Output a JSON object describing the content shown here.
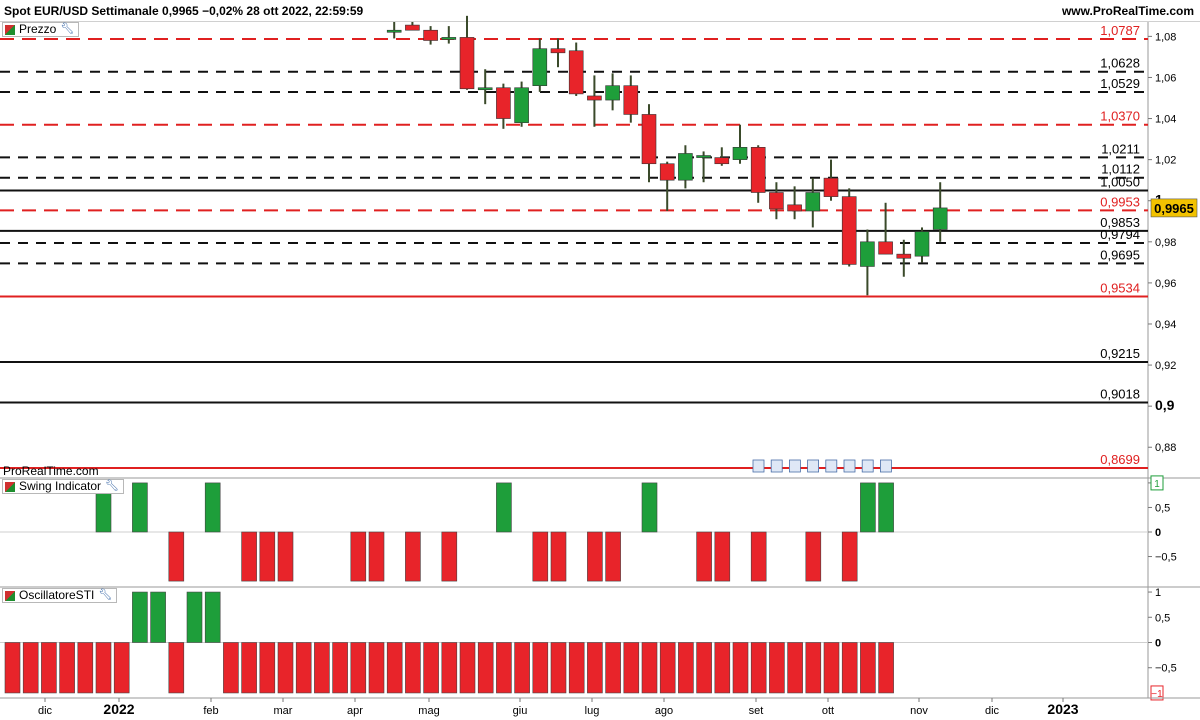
{
  "header": {
    "title": "Spot EUR/USD Settimanale 0,9965 −0,02% 28 ott 2022, 22:59:59",
    "site": "www.ProRealTime.com",
    "watermark": "ProRealTime.com"
  },
  "panels": {
    "price_tab": "Prezzo",
    "swing_tab": "Swing Indicator",
    "osc_tab": "OscillatoreSTI"
  },
  "icons": {
    "panel": "indicator-icon",
    "settings": "wrench-icon",
    "news": "news-icon"
  },
  "colors": {
    "up": "#1e9e3a",
    "down": "#e8242a",
    "level_red": "#e02020",
    "level_black": "#111111"
  },
  "chart_data": [
    {
      "type": "candlestick",
      "yticks": [
        "1,08",
        "1,06",
        "1,04",
        "1,02",
        "1",
        "0,98",
        "0,96",
        "0,94",
        "0,92",
        "0,9",
        "0,88"
      ],
      "ylim": [
        0.866,
        1.087
      ],
      "x_labels": [
        "dic",
        "2022",
        "feb",
        "mar",
        "apr",
        "mag",
        "giu",
        "lug",
        "ago",
        "set",
        "ott",
        "nov",
        "dic",
        "2023"
      ],
      "current_price": "0,9965",
      "levels": [
        {
          "value": 1.0787,
          "label": "1,0787",
          "color": "red",
          "style": "dashed"
        },
        {
          "value": 1.0628,
          "label": "1,0628",
          "color": "black",
          "style": "dashed"
        },
        {
          "value": 1.0529,
          "label": "1,0529",
          "color": "black",
          "style": "dashed"
        },
        {
          "value": 1.037,
          "label": "1,0370",
          "color": "red",
          "style": "dashed"
        },
        {
          "value": 1.0211,
          "label": "1,0211",
          "color": "black",
          "style": "dashed"
        },
        {
          "value": 1.0112,
          "label": "1,0112",
          "color": "black",
          "style": "dashed"
        },
        {
          "value": 1.005,
          "label": "1,0050",
          "color": "black",
          "style": "solid"
        },
        {
          "value": 0.9953,
          "label": "0,9953",
          "color": "red",
          "style": "dashed"
        },
        {
          "value": 0.9853,
          "label": "0,9853",
          "color": "black",
          "style": "solid"
        },
        {
          "value": 0.9794,
          "label": "0,9794",
          "color": "black",
          "style": "dashed"
        },
        {
          "value": 0.9695,
          "label": "0,9695",
          "color": "black",
          "style": "dashed"
        },
        {
          "value": 0.9534,
          "label": "0,9534",
          "color": "red",
          "style": "solid"
        },
        {
          "value": 0.9215,
          "label": "0,9215",
          "color": "black",
          "style": "solid"
        },
        {
          "value": 0.9018,
          "label": "0,9018",
          "color": "black",
          "style": "solid"
        },
        {
          "value": 0.8699,
          "label": "0,8699",
          "color": "red",
          "style": "solid"
        }
      ],
      "candles": [
        {
          "week": 21,
          "o": 1.082,
          "h": 1.087,
          "l": 1.079,
          "c": 1.083
        },
        {
          "week": 22,
          "o": 1.0855,
          "h": 1.087,
          "l": 1.083,
          "c": 1.083
        },
        {
          "week": 23,
          "o": 1.083,
          "h": 1.085,
          "l": 1.076,
          "c": 1.078
        },
        {
          "week": 24,
          "o": 1.0785,
          "h": 1.085,
          "l": 1.0765,
          "c": 1.0795
        },
        {
          "week": 25,
          "o": 1.0795,
          "h": 1.09,
          "l": 1.054,
          "c": 1.0545
        },
        {
          "week": 26,
          "o": 1.0545,
          "h": 1.064,
          "l": 1.047,
          "c": 1.055
        },
        {
          "week": 27,
          "o": 1.055,
          "h": 1.057,
          "l": 1.035,
          "c": 1.04
        },
        {
          "week": 28,
          "o": 1.038,
          "h": 1.058,
          "l": 1.036,
          "c": 1.055
        },
        {
          "week": 29,
          "o": 1.056,
          "h": 1.079,
          "l": 1.053,
          "c": 1.074
        },
        {
          "week": 30,
          "o": 1.074,
          "h": 1.079,
          "l": 1.065,
          "c": 1.072
        },
        {
          "week": 31,
          "o": 1.073,
          "h": 1.077,
          "l": 1.051,
          "c": 1.052
        },
        {
          "week": 32,
          "o": 1.051,
          "h": 1.061,
          "l": 1.036,
          "c": 1.049
        },
        {
          "week": 33,
          "o": 1.049,
          "h": 1.062,
          "l": 1.044,
          "c": 1.056
        },
        {
          "week": 34,
          "o": 1.056,
          "h": 1.061,
          "l": 1.038,
          "c": 1.042
        },
        {
          "week": 35,
          "o": 1.042,
          "h": 1.047,
          "l": 1.009,
          "c": 1.018
        },
        {
          "week": 36,
          "o": 1.018,
          "h": 1.019,
          "l": 0.995,
          "c": 1.01
        },
        {
          "week": 37,
          "o": 1.01,
          "h": 1.027,
          "l": 1.006,
          "c": 1.023
        },
        {
          "week": 38,
          "o": 1.021,
          "h": 1.024,
          "l": 1.009,
          "c": 1.022
        },
        {
          "week": 39,
          "o": 1.021,
          "h": 1.026,
          "l": 1.017,
          "c": 1.018
        },
        {
          "week": 40,
          "o": 1.02,
          "h": 1.037,
          "l": 1.018,
          "c": 1.026
        },
        {
          "week": 41,
          "o": 1.026,
          "h": 1.027,
          "l": 0.999,
          "c": 1.004
        },
        {
          "week": 42,
          "o": 1.004,
          "h": 1.009,
          "l": 0.991,
          "c": 0.996
        },
        {
          "week": 43,
          "o": 0.998,
          "h": 1.007,
          "l": 0.991,
          "c": 0.995
        },
        {
          "week": 44,
          "o": 0.995,
          "h": 1.011,
          "l": 0.987,
          "c": 1.004
        },
        {
          "week": 45,
          "o": 1.011,
          "h": 1.02,
          "l": 1.0,
          "c": 1.002
        },
        {
          "week": 46,
          "o": 1.002,
          "h": 1.006,
          "l": 0.968,
          "c": 0.969
        },
        {
          "week": 47,
          "o": 0.968,
          "h": 0.986,
          "l": 0.954,
          "c": 0.98
        },
        {
          "week": 48,
          "o": 0.98,
          "h": 0.999,
          "l": 0.974,
          "c": 0.974
        },
        {
          "week": 49,
          "o": 0.974,
          "h": 0.981,
          "l": 0.963,
          "c": 0.972
        },
        {
          "week": 50,
          "o": 0.973,
          "h": 0.987,
          "l": 0.97,
          "c": 0.985
        },
        {
          "week": 51,
          "o": 0.986,
          "h": 1.009,
          "l": 0.98,
          "c": 0.9965
        }
      ]
    },
    {
      "type": "bar",
      "name": "Swing Indicator",
      "yticks": [
        "1",
        "0,5",
        "0",
        "−0,5"
      ],
      "ylim": [
        -1.1,
        1.1
      ],
      "last_value": "1",
      "values": [
        0,
        0,
        0,
        0,
        0,
        1,
        0,
        1,
        0,
        -1,
        0,
        1,
        0,
        -1,
        -1,
        -1,
        0,
        0,
        0,
        -1,
        -1,
        0,
        -1,
        0,
        -1,
        0,
        0,
        1,
        0,
        -1,
        -1,
        0,
        -1,
        -1,
        0,
        1,
        0,
        0,
        -1,
        -1,
        0,
        -1,
        0,
        0,
        -1,
        0,
        -1,
        1,
        1
      ]
    },
    {
      "type": "bar",
      "name": "OscillatoreSTI",
      "yticks": [
        "1",
        "0,5",
        "0",
        "−0,5"
      ],
      "ylim": [
        -1.1,
        1.1
      ],
      "last_value": "−1",
      "values": [
        -1,
        -1,
        -1,
        -1,
        -1,
        -1,
        -1,
        1,
        1,
        -1,
        1,
        1,
        -1,
        -1,
        -1,
        -1,
        -1,
        -1,
        -1,
        -1,
        -1,
        -1,
        -1,
        -1,
        -1,
        -1,
        -1,
        -1,
        -1,
        -1,
        -1,
        -1,
        -1,
        -1,
        -1,
        -1,
        -1,
        -1,
        -1,
        -1,
        -1,
        -1,
        -1,
        -1,
        -1,
        -1,
        -1,
        -1,
        -1
      ]
    }
  ]
}
